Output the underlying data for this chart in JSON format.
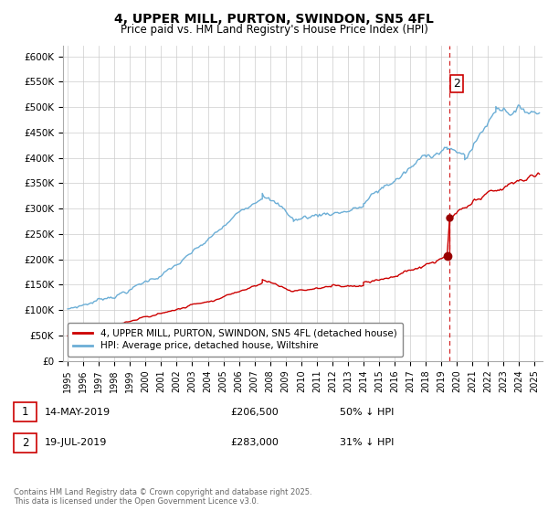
{
  "title1": "4, UPPER MILL, PURTON, SWINDON, SN5 4FL",
  "title2": "Price paid vs. HM Land Registry's House Price Index (HPI)",
  "ylim": [
    0,
    620000
  ],
  "yticks": [
    0,
    50000,
    100000,
    150000,
    200000,
    250000,
    300000,
    350000,
    400000,
    450000,
    500000,
    550000,
    600000
  ],
  "ytick_labels": [
    "£0",
    "£50K",
    "£100K",
    "£150K",
    "£200K",
    "£250K",
    "£300K",
    "£350K",
    "£400K",
    "£450K",
    "£500K",
    "£550K",
    "£600K"
  ],
  "hpi_color": "#6baed6",
  "price_color": "#cc0000",
  "vline_color": "#cc0000",
  "legend_entry1": "4, UPPER MILL, PURTON, SWINDON, SN5 4FL (detached house)",
  "legend_entry2": "HPI: Average price, detached house, Wiltshire",
  "table_row1": [
    "1",
    "14-MAY-2019",
    "£206,500",
    "50% ↓ HPI"
  ],
  "table_row2": [
    "2",
    "19-JUL-2019",
    "£283,000",
    "31% ↓ HPI"
  ],
  "footnote": "Contains HM Land Registry data © Crown copyright and database right 2025.\nThis data is licensed under the Open Government Licence v3.0.",
  "background_color": "#ffffff",
  "grid_color": "#cccccc",
  "xlim_left": 1994.7,
  "xlim_right": 2025.5
}
